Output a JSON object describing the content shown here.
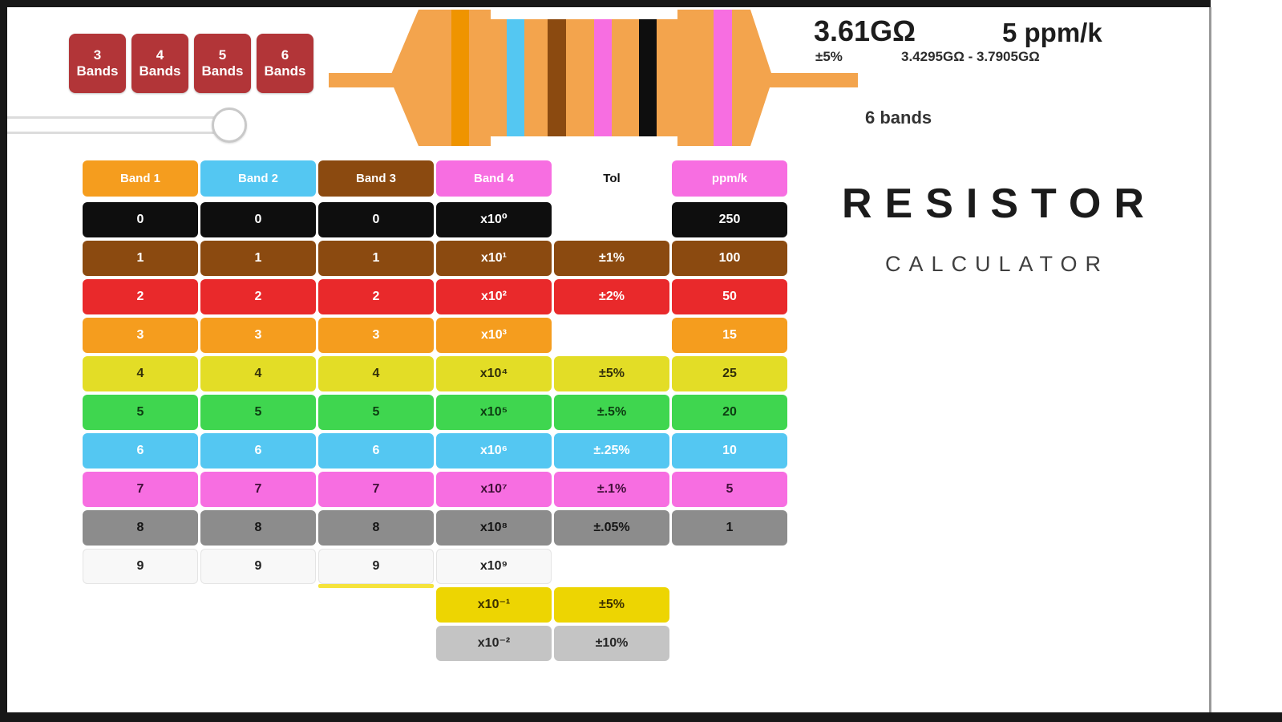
{
  "band_buttons": [
    {
      "number": "3",
      "label": "Bands"
    },
    {
      "number": "4",
      "label": "Bands"
    },
    {
      "number": "5",
      "label": "Bands"
    },
    {
      "number": "6",
      "label": "Bands"
    }
  ],
  "resistor": {
    "body_color": "#F3A44D",
    "lead_color": "#F3A44D",
    "bands": [
      {
        "name": "band-1-orange",
        "color": "#EF9400"
      },
      {
        "name": "band-2-blue",
        "color": "#54C7F2"
      },
      {
        "name": "band-3-brown",
        "color": "#8B4A10"
      },
      {
        "name": "band-4-violet",
        "color": "#F76EE1"
      },
      {
        "name": "band-5-black",
        "color": "#0E0E0E"
      },
      {
        "name": "band-6-violet",
        "color": "#F76EE1"
      }
    ]
  },
  "results": {
    "resistance": "3.61GΩ",
    "tolerance": "±5%",
    "tempco": "5 ppm/k",
    "range": "3.4295GΩ - 3.7905GΩ",
    "bands": "6 bands"
  },
  "title": {
    "line1": "RESISTOR",
    "line2": "CALCULATOR"
  },
  "table": {
    "headers": [
      {
        "label": "Band 1",
        "bg": "#F59D1E",
        "fg": "#ffffff"
      },
      {
        "label": "Band 2",
        "bg": "#54C7F2",
        "fg": "#ffffff"
      },
      {
        "label": "Band 3",
        "bg": "#8B4A10",
        "fg": "#ffffff"
      },
      {
        "label": "Band 4",
        "bg": "#F76EE1",
        "fg": "#ffffff"
      },
      {
        "label": "Tol",
        "bg": "transparent",
        "fg": "#111111"
      },
      {
        "label": "ppm/k",
        "bg": "#F76EE1",
        "fg": "#ffffff"
      }
    ],
    "rows": [
      {
        "name": "black",
        "bg": "#0E0E0E",
        "fg": "#ffffff",
        "digit": "0",
        "mult": "x10⁰",
        "tol": null,
        "ppm": "250"
      },
      {
        "name": "brown",
        "bg": "#8B4A10",
        "fg": "#ffffff",
        "digit": "1",
        "mult": "x10¹",
        "tol": "±1%",
        "ppm": "100"
      },
      {
        "name": "red",
        "bg": "#E9292B",
        "fg": "#ffffff",
        "digit": "2",
        "mult": "x10²",
        "tol": "±2%",
        "ppm": "50"
      },
      {
        "name": "orange",
        "bg": "#F59D1E",
        "fg": "#ffffff",
        "digit": "3",
        "mult": "x10³",
        "tol": null,
        "ppm": "15"
      },
      {
        "name": "yellow",
        "bg": "#E3DD26",
        "fg": "#33300a",
        "digit": "4",
        "mult": "x10⁴",
        "tol": "±5%",
        "ppm": "25"
      },
      {
        "name": "green",
        "bg": "#3FD64F",
        "fg": "#0d3d12",
        "digit": "5",
        "mult": "x10⁵",
        "tol": "±.5%",
        "ppm": "20"
      },
      {
        "name": "blue",
        "bg": "#54C7F2",
        "fg": "#ffffff",
        "digit": "6",
        "mult": "x10⁶",
        "tol": "±.25%",
        "ppm": "10"
      },
      {
        "name": "violet",
        "bg": "#F76EE1",
        "fg": "#401038",
        "digit": "7",
        "mult": "x10⁷",
        "tol": "±.1%",
        "ppm": "5"
      },
      {
        "name": "gray",
        "bg": "#8C8C8C",
        "fg": "#151515",
        "digit": "8",
        "mult": "x10⁸",
        "tol": "±.05%",
        "ppm": "1"
      },
      {
        "name": "white",
        "bg": "#F8F8F8",
        "fg": "#222222",
        "digit": "9",
        "mult": "x10⁹",
        "tol": null,
        "ppm": null
      }
    ],
    "extra_rows": [
      {
        "name": "gold",
        "bg": "#EDD502",
        "fg": "#3c3000",
        "mult": "x10⁻¹",
        "tol": "±5%"
      },
      {
        "name": "silver",
        "bg": "#C4C4C4",
        "fg": "#262626",
        "mult": "x10⁻²",
        "tol": "±10%"
      }
    ],
    "highlight_color": "#F5E33C"
  }
}
